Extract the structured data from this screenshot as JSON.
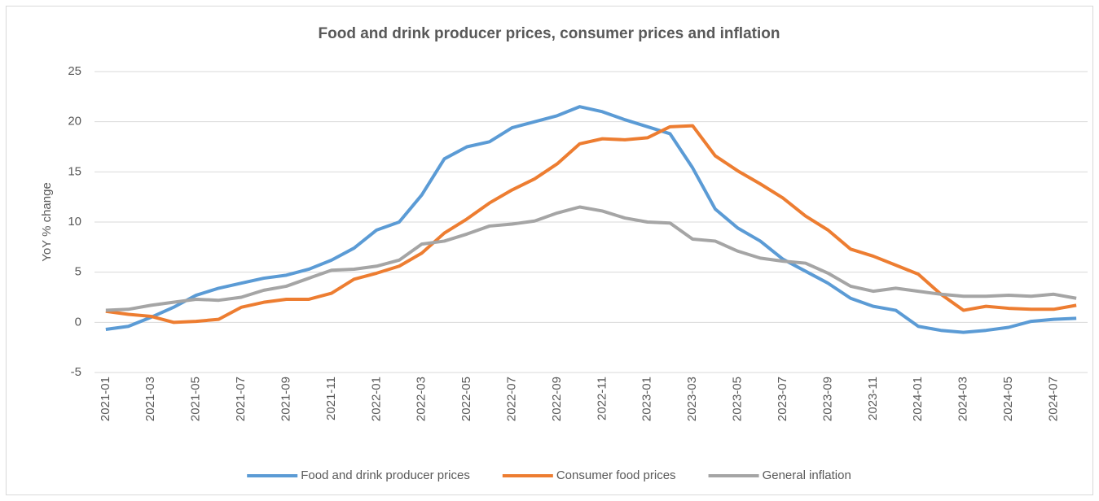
{
  "chart_data": {
    "type": "line",
    "title": "Food and drink producer prices, consumer prices and inflation",
    "y_label": "YoY % change",
    "categories": [
      "2021-01",
      null,
      "2021-03",
      null,
      "2021-05",
      null,
      "2021-07",
      null,
      "2021-09",
      null,
      "2021-11",
      null,
      "2022-01",
      null,
      "2022-03",
      null,
      "2022-05",
      null,
      "2022-07",
      null,
      "2022-09",
      null,
      "2022-11",
      null,
      "2023-01",
      null,
      "2023-03",
      null,
      "2023-05",
      null,
      "2023-07",
      null,
      "2023-09",
      null,
      "2023-11",
      null,
      "2024-01",
      null,
      "2024-03",
      null,
      "2024-05",
      null,
      "2024-07",
      null
    ],
    "series": [
      {
        "name": "Food and drink producer prices",
        "color": "#5b9bd5",
        "values": [
          -0.7,
          -0.4,
          0.5,
          1.5,
          2.7,
          3.4,
          3.9,
          4.4,
          4.7,
          5.3,
          6.2,
          7.4,
          9.2,
          10.0,
          12.7,
          16.3,
          17.5,
          18.0,
          19.4,
          20.0,
          20.6,
          21.5,
          21.0,
          20.2,
          19.5,
          18.8,
          15.4,
          11.3,
          9.4,
          8.1,
          6.3,
          5.1,
          3.9,
          2.4,
          1.6,
          1.2,
          -0.4,
          -0.8,
          -1.0,
          -0.8,
          -0.5,
          0.1,
          0.3,
          0.4
        ]
      },
      {
        "name": "Consumer food prices",
        "color": "#ed7d31",
        "values": [
          1.1,
          0.8,
          0.6,
          0.0,
          0.1,
          0.3,
          1.5,
          2.0,
          2.3,
          2.3,
          2.9,
          4.3,
          4.9,
          5.6,
          6.9,
          8.9,
          10.3,
          11.9,
          13.2,
          14.3,
          15.8,
          17.8,
          18.3,
          18.2,
          18.4,
          19.5,
          19.6,
          16.6,
          15.1,
          13.8,
          12.4,
          10.6,
          9.2,
          7.3,
          6.6,
          5.7,
          4.8,
          2.8,
          1.2,
          1.6,
          1.4,
          1.3,
          1.3,
          1.7
        ]
      },
      {
        "name": "General inflation",
        "color": "#a5a5a5",
        "values": [
          1.2,
          1.3,
          1.7,
          2.0,
          2.3,
          2.2,
          2.5,
          3.2,
          3.6,
          4.4,
          5.2,
          5.3,
          5.6,
          6.2,
          7.8,
          8.1,
          8.8,
          9.6,
          9.8,
          10.1,
          10.9,
          11.5,
          11.1,
          10.4,
          10.0,
          9.9,
          8.3,
          8.1,
          7.1,
          6.4,
          6.1,
          5.9,
          4.9,
          3.6,
          3.1,
          3.4,
          3.1,
          2.8,
          2.6,
          2.6,
          2.7,
          2.6,
          2.8,
          2.4
        ]
      }
    ],
    "ylim": [
      -5,
      25
    ],
    "yticks": [
      -5,
      0,
      5,
      10,
      15,
      20,
      25
    ],
    "grid": true,
    "legend": "bottom"
  }
}
